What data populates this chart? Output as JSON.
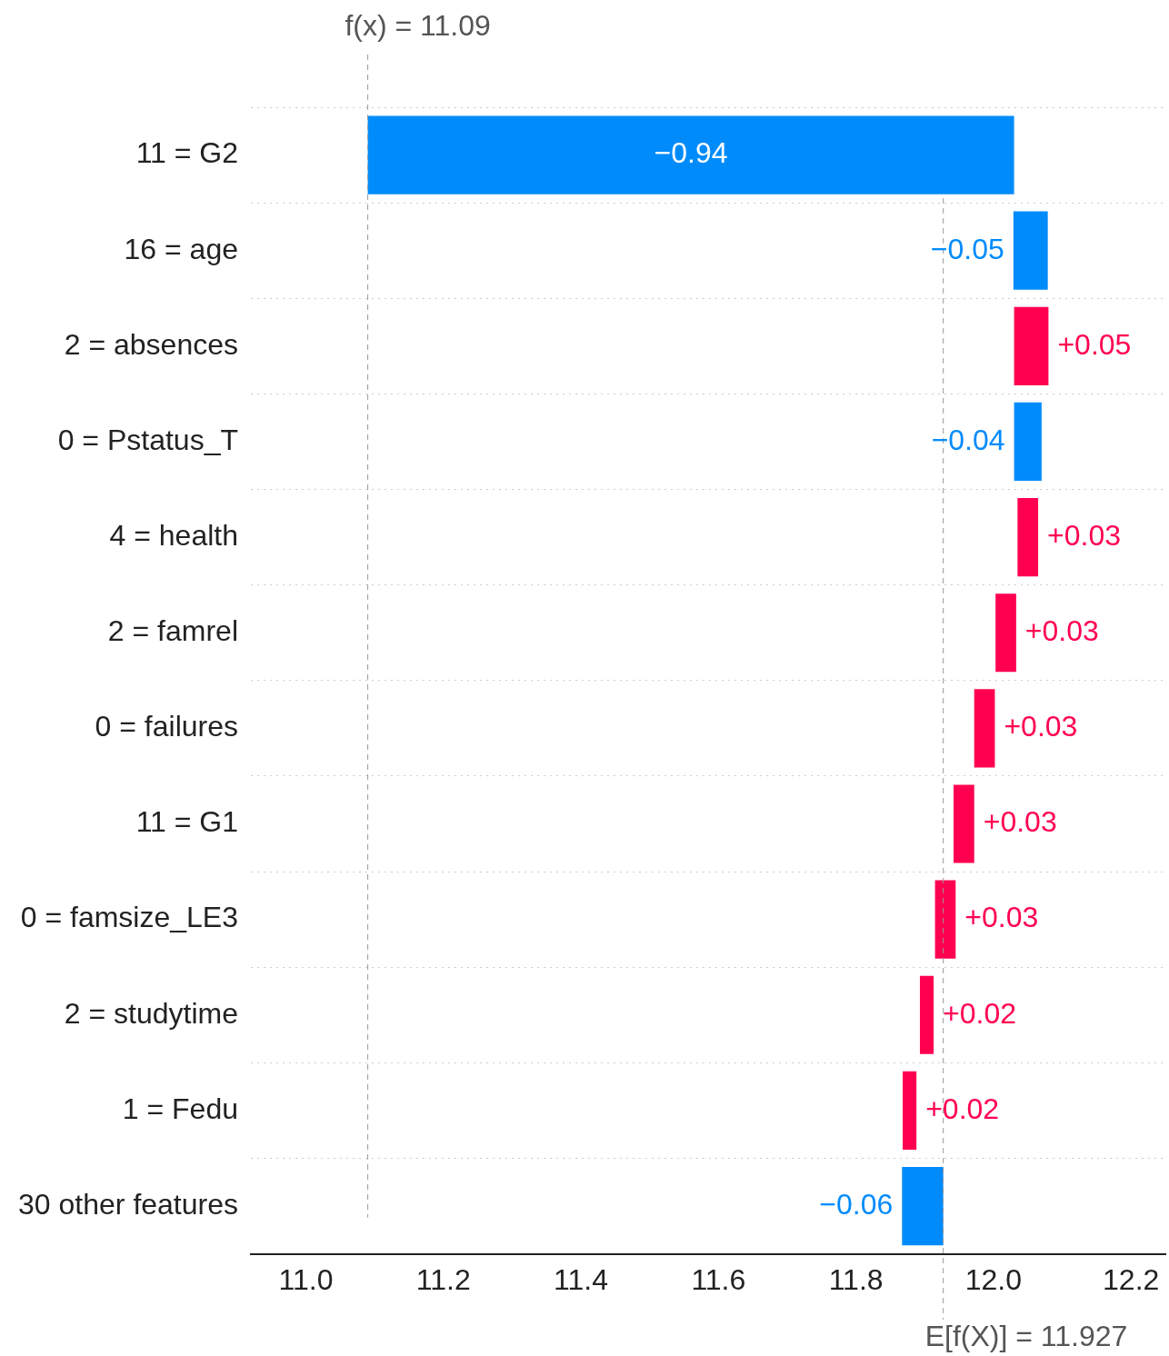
{
  "chart_data": {
    "type": "bar",
    "orientation": "horizontal",
    "categories": [
      "11 = G2",
      "16 = age",
      "2 = absences",
      "0 = Pstatus_T",
      "4 = health",
      "2 = famrel",
      "0 = failures",
      "11 = G1",
      "0 = famsize_LE3",
      "2 = studytime",
      "1 = Fedu",
      "30 other features"
    ],
    "values": [
      -0.94,
      -0.05,
      0.05,
      -0.04,
      0.03,
      0.03,
      0.03,
      0.03,
      0.03,
      0.02,
      0.02,
      -0.06
    ],
    "base": [
      12.03,
      12.079,
      12.03,
      12.07,
      12.035,
      12.003,
      11.972,
      11.942,
      11.915,
      11.893,
      11.868,
      11.927
    ],
    "colors": [
      "#008bfb",
      "#008bfb",
      "#ff0051",
      "#008bfb",
      "#ff0051",
      "#ff0051",
      "#ff0051",
      "#ff0051",
      "#ff0051",
      "#ff0051",
      "#ff0051",
      "#008bfb"
    ],
    "value_labels": [
      "−0.94",
      "−0.05",
      "+0.05",
      "−0.04",
      "+0.03",
      "+0.03",
      "+0.03",
      "+0.03",
      "+0.03",
      "+0.02",
      "+0.02",
      "−0.06"
    ],
    "xlim": [
      10.92,
      12.25
    ],
    "xticks": [
      {
        "value": 11,
        "label": "11.0"
      },
      {
        "value": 11.2,
        "label": "11.2"
      },
      {
        "value": 11.4,
        "label": "11.4"
      },
      {
        "value": 11.6,
        "label": "11.6"
      },
      {
        "value": 11.8,
        "label": "11.8"
      },
      {
        "value": 12,
        "label": "12.0"
      },
      {
        "value": 12.2,
        "label": "12.2"
      }
    ],
    "ref_lines": [
      {
        "axis": "x",
        "value": 11.09,
        "label": "f(x) = 11.09",
        "color": "#999999",
        "line_style": "dashed"
      },
      {
        "axis": "x",
        "value": 11.927,
        "label": "E[f(X)] = 11.927",
        "color": "#999999",
        "line_style": "dashed"
      }
    ],
    "grid": "y",
    "legend": false
  }
}
